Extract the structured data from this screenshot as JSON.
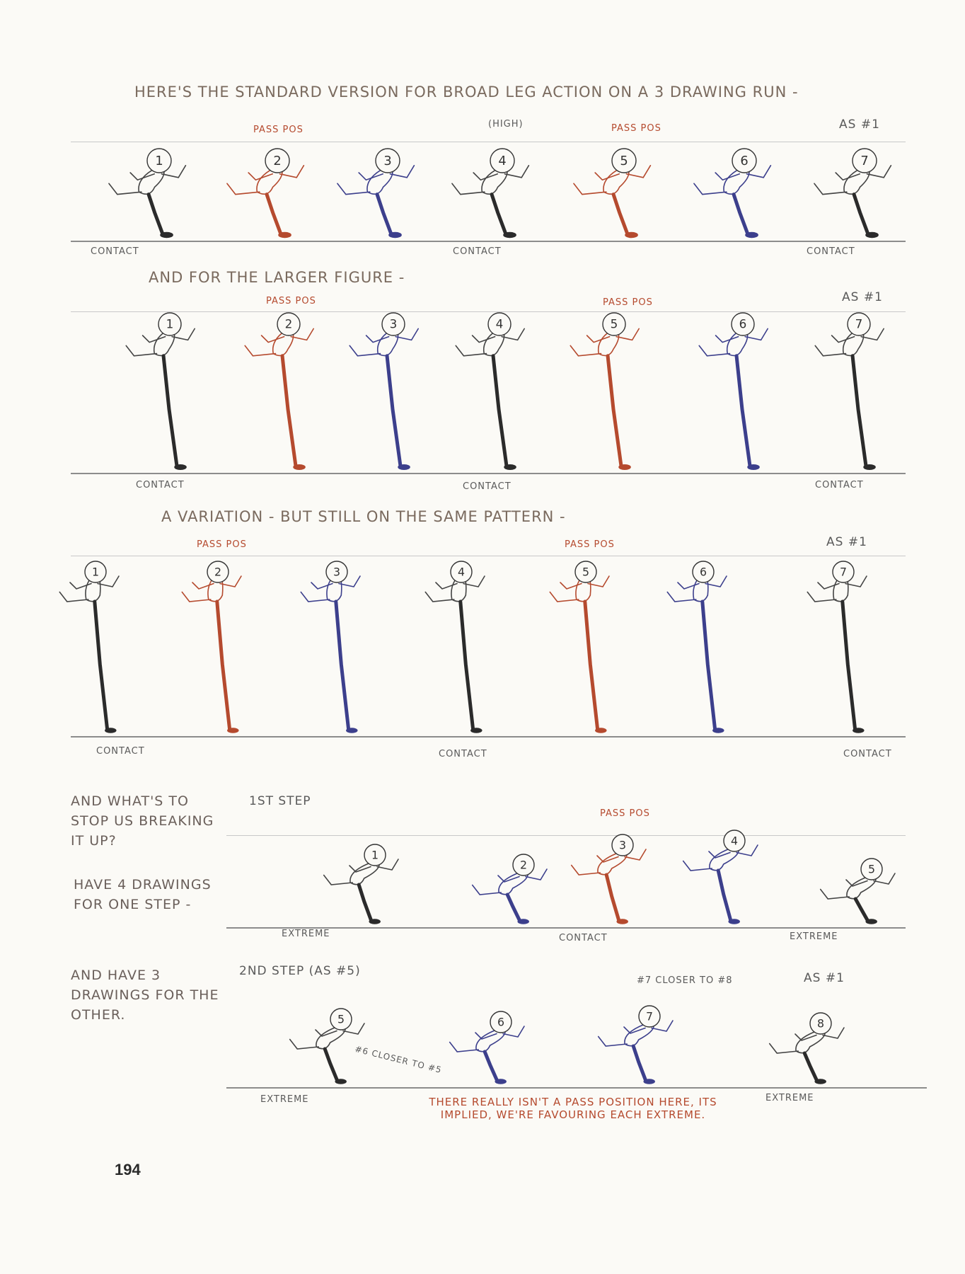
{
  "page_number": "194",
  "colors": {
    "black": "#2b2b2b",
    "red": "#b54a2e",
    "blue": "#3c3f8c",
    "gray": "#8c8c8c"
  },
  "row1": {
    "heading": "HERE'S THE STANDARD VERSION FOR BROAD LEG ACTION ON A 3 DRAWING RUN -",
    "pass_pos_1": "PASS POS",
    "high": "(HIGH)",
    "pass_pos_2": "PASS POS",
    "as_1": "AS #1",
    "numbers": [
      "1",
      "2",
      "3",
      "4",
      "5",
      "6",
      "7"
    ],
    "contact_labels": [
      "CONTACT",
      "CONTACT",
      "CONTACT"
    ]
  },
  "row2": {
    "heading": "AND FOR THE LARGER FIGURE -",
    "pass_pos_1": "PASS POS",
    "pass_pos_2": "PASS POS",
    "as_1": "AS #1",
    "numbers": [
      "1",
      "2",
      "3",
      "4",
      "5",
      "6",
      "7"
    ],
    "contact_labels": [
      "CONTACT",
      "CONTACT",
      "CONTACT"
    ]
  },
  "row3": {
    "heading": "A VARIATION - BUT STILL ON THE SAME PATTERN -",
    "pass_pos_1": "PASS POS",
    "pass_pos_2": "PASS POS",
    "as_1": "AS #1",
    "numbers": [
      "1",
      "2",
      "3",
      "4",
      "5",
      "6",
      "7"
    ],
    "contact_labels": [
      "CONTACT",
      "CONTACT",
      "CONTACT"
    ]
  },
  "row4": {
    "side_note_1": "AND WHAT'S TO STOP US BREAKING IT UP?",
    "side_note_2": "HAVE 4 DRAWINGS FOR ONE STEP -",
    "step_label": "1ST STEP",
    "pass_pos": "PASS POS",
    "numbers": [
      "1",
      "2",
      "3",
      "4",
      "5"
    ],
    "labels": [
      "EXTREME",
      "CONTACT",
      "EXTREME"
    ]
  },
  "row5": {
    "side_note": "AND HAVE 3 DRAWINGS FOR THE OTHER.",
    "step_label": "2ND STEP (AS #5)",
    "closer_7": "#7 CLOSER TO #8",
    "as_1": "AS #1",
    "closer_6": "#6 CLOSER TO #5",
    "numbers": [
      "5",
      "6",
      "7",
      "8"
    ],
    "labels": [
      "EXTREME",
      "EXTREME"
    ],
    "red_note": "THERE REALLY ISN'T A PASS POSITION HERE, ITS IMPLIED, WE'RE FAVOURING EACH EXTREME."
  }
}
